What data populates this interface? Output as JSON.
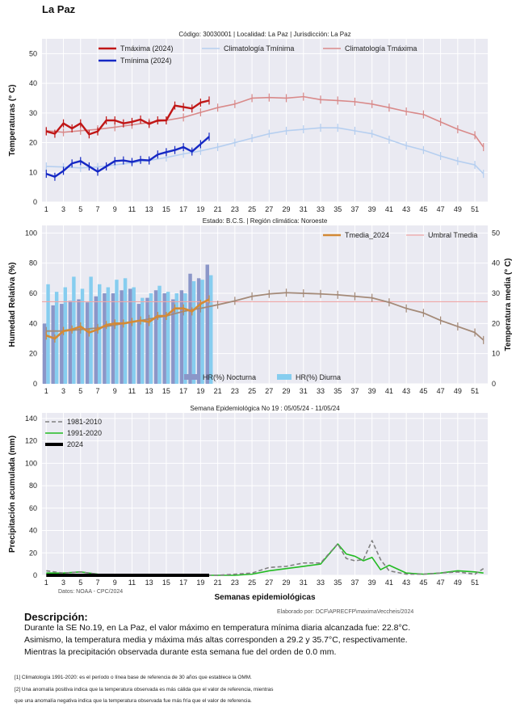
{
  "page": {
    "title": "La Paz",
    "credit_left": "Datos: NOAA - CPC/2024",
    "credit_right": "Elaborado por: DCF\\APRECFP\\maximaVeccheis/2024"
  },
  "description": {
    "heading": "Descripción:",
    "lines": [
      "Durante la SE No.19, en La Paz, el valor máximo en temperatura mínima diaria alcanzada fue: 22.8°C.",
      "Asimismo, la temperatura media y máxima más altas corresponden a 29.2 y 35.7°C, respectivamente.",
      "Mientras la precipitación observada durante esta semana fue del orden de  0.0 mm."
    ],
    "notes": [
      "[1] Climatología 1991-2020: es el período o línea base de referencia de 30 años que establece la OMM.",
      "[2] Una anomalía positiva indica que la temperatura observada es más cálida que el valor de referencia, mientras",
      "     que una anomalía negativa indica que la temperatura observada fue más fría que el valor de referencia."
    ]
  },
  "colors": {
    "tmax": "#c01616",
    "tmin": "#1528c4",
    "clim_tmax": "#d98a8a",
    "clim_tmin": "#b6cff0",
    "tmedia": "#d48a36",
    "umbral": "#f0a7a7",
    "hr_noct": "#8b96c8",
    "hr_diur": "#86cdef",
    "p1981": "#808080",
    "p1991": "#22bb22",
    "p2024": "#000000",
    "panel_bg": "#eaeaf2"
  },
  "chart_data": [
    {
      "type": "line",
      "title": "Código: 30030001  |   Localidad: La Paz  |   Jurisdicción: La Paz",
      "ylabel": "Temperaturas (° C)",
      "ylim": [
        0,
        55
      ],
      "yticks": [
        0,
        10,
        20,
        30,
        40,
        50
      ],
      "xlim": [
        0.5,
        52.5
      ],
      "xticks": [
        "1",
        "3",
        "5",
        "7",
        "9",
        "11",
        "13",
        "15",
        "17",
        "19",
        "21",
        "23",
        "25",
        "27",
        "29",
        "31",
        "33",
        "35",
        "37",
        "39",
        "41",
        "43",
        "45",
        "47",
        "49",
        "51"
      ],
      "grid": true,
      "legend": [
        "Tmáxima (2024)",
        "Tmínima (2024)",
        "Climatología Tmínima",
        "Climatología Tmáxima"
      ],
      "series": [
        {
          "name": "Tmáxima (2024)",
          "x": [
            1,
            2,
            3,
            4,
            5,
            6,
            7,
            8,
            9,
            10,
            11,
            12,
            13,
            14,
            15,
            16,
            17,
            18,
            19,
            20
          ],
          "values": [
            23.8,
            23.0,
            26.5,
            24.8,
            26.5,
            22.8,
            23.8,
            27.5,
            27.5,
            26.5,
            27.0,
            27.8,
            26.3,
            27.5,
            27.5,
            32.5,
            32.0,
            31.5,
            33.5,
            34.2
          ]
        },
        {
          "name": "Tmínima (2024)",
          "x": [
            1,
            2,
            3,
            4,
            5,
            6,
            7,
            8,
            9,
            10,
            11,
            12,
            13,
            14,
            15,
            16,
            17,
            18,
            19,
            20
          ],
          "values": [
            9.5,
            8.5,
            10.5,
            13.0,
            13.8,
            12.0,
            10.2,
            12.0,
            13.8,
            14.0,
            13.5,
            14.2,
            14.0,
            16.0,
            16.8,
            17.5,
            18.5,
            17.0,
            19.5,
            22.0
          ]
        },
        {
          "name": "Climatología Tmínima",
          "x": [
            1,
            3,
            5,
            7,
            9,
            11,
            13,
            15,
            17,
            19,
            21,
            23,
            25,
            27,
            29,
            31,
            33,
            35,
            37,
            39,
            41,
            43,
            45,
            47,
            49,
            51,
            52
          ],
          "values": [
            12.0,
            11.8,
            11.5,
            11.8,
            12.5,
            13.2,
            14.0,
            15.0,
            16.2,
            17.2,
            18.5,
            20.0,
            21.5,
            23.0,
            24.0,
            24.5,
            25.0,
            25.0,
            24.0,
            23.0,
            21.0,
            19.0,
            17.5,
            15.5,
            13.8,
            12.5,
            9.5
          ]
        },
        {
          "name": "Climatología Tmáxima",
          "x": [
            1,
            3,
            5,
            7,
            9,
            11,
            13,
            15,
            17,
            19,
            21,
            23,
            25,
            27,
            29,
            31,
            33,
            35,
            37,
            39,
            41,
            43,
            45,
            47,
            49,
            51,
            52
          ],
          "values": [
            24.0,
            23.5,
            24.0,
            24.5,
            25.2,
            26.0,
            26.8,
            27.5,
            28.5,
            30.2,
            31.8,
            33.0,
            35.0,
            35.2,
            35.0,
            35.5,
            34.5,
            34.2,
            33.8,
            33.0,
            31.8,
            30.5,
            29.5,
            27.0,
            24.5,
            22.5,
            18.5
          ]
        }
      ]
    },
    {
      "type": "bar",
      "title": "Estado: B.C.S.  |   Región climática: Noroeste",
      "ylabel": "Humedad Relativa (%)",
      "y2label": "Temperatura media (° C)",
      "ylim": [
        0,
        105
      ],
      "yticks": [
        0,
        20,
        40,
        60,
        80,
        100
      ],
      "y2lim": [
        0,
        52.5
      ],
      "y2ticks": [
        0,
        10,
        20,
        30,
        40,
        50
      ],
      "xlim": [
        0.5,
        52.5
      ],
      "grid": true,
      "legend": [
        "Tmedia_2024",
        "Umbral Tmedia",
        "HR(%) Nocturna",
        "HR(%) Diurna"
      ],
      "series": [
        {
          "name": "HR(%) Nocturna",
          "x": [
            1,
            2,
            3,
            4,
            5,
            6,
            7,
            8,
            9,
            10,
            11,
            12,
            13,
            14,
            15,
            16,
            17,
            18,
            19,
            20
          ],
          "values": [
            40,
            52,
            53,
            55,
            56,
            54,
            58,
            60,
            60,
            62,
            63,
            53,
            57,
            62,
            60,
            56,
            62,
            73,
            70,
            79
          ]
        },
        {
          "name": "HR(%) Diurna",
          "x": [
            1,
            2,
            3,
            4,
            5,
            6,
            7,
            8,
            9,
            10,
            11,
            12,
            13,
            14,
            15,
            16,
            17,
            18,
            19,
            20
          ],
          "values": [
            66,
            61,
            64,
            71,
            63,
            71,
            66,
            64,
            69,
            70,
            64,
            57,
            60,
            65,
            61,
            60,
            60,
            68,
            69,
            72
          ]
        },
        {
          "name": "Tmedia_2024",
          "x": [
            1,
            2,
            3,
            4,
            5,
            6,
            7,
            8,
            9,
            10,
            11,
            12,
            13,
            14,
            15,
            16,
            17,
            18,
            19,
            20
          ],
          "values": [
            16.0,
            15.0,
            17.5,
            18.0,
            19.0,
            17.0,
            18.0,
            19.5,
            20.0,
            20.0,
            20.5,
            21.0,
            20.5,
            22.5,
            22.5,
            25.0,
            25.0,
            24.0,
            26.5,
            28.0
          ]
        },
        {
          "name": "Tmedia climatología",
          "x": [
            1,
            3,
            5,
            7,
            9,
            11,
            13,
            15,
            17,
            19,
            21,
            23,
            25,
            27,
            29,
            31,
            33,
            35,
            37,
            39,
            41,
            43,
            45,
            47,
            49,
            51,
            52
          ],
          "values": [
            17.5,
            17.5,
            18.0,
            18.5,
            19.5,
            20.5,
            21.5,
            22.5,
            24.0,
            25.0,
            26.2,
            27.5,
            29.0,
            29.8,
            30.2,
            30.0,
            29.8,
            29.5,
            29.0,
            28.5,
            27.0,
            25.0,
            23.5,
            21.0,
            19.0,
            17.0,
            14.5
          ]
        },
        {
          "name": "Umbral Tmedia",
          "value": 27.2
        }
      ]
    },
    {
      "type": "line",
      "title": "Semana Epidemiológica No 19  :   05/05/24 - 11/05/24",
      "xlabel": "Semanas epidemiológicas",
      "ylabel": "Precipitación acumulada (mm)",
      "ylim": [
        0,
        145
      ],
      "yticks": [
        0,
        20,
        40,
        60,
        80,
        100,
        120,
        140
      ],
      "xlim": [
        0.5,
        52.5
      ],
      "grid": true,
      "legend": [
        "1981-2010",
        "1991-2020",
        "2024"
      ],
      "series": [
        {
          "name": "1981-2010",
          "x": [
            1,
            3,
            5,
            7,
            9,
            11,
            13,
            15,
            17,
            19,
            21,
            23,
            25,
            27,
            29,
            31,
            33,
            35,
            36,
            37,
            38,
            39,
            40,
            41,
            43,
            45,
            47,
            49,
            51,
            52
          ],
          "values": [
            4,
            2,
            3,
            1,
            0,
            0,
            0,
            0,
            0,
            0,
            0,
            1,
            2,
            7,
            8,
            11,
            11,
            28,
            15,
            13,
            14,
            31,
            14,
            4,
            1,
            1,
            2,
            3,
            1,
            6
          ]
        },
        {
          "name": "1991-2020",
          "x": [
            1,
            3,
            5,
            7,
            9,
            11,
            13,
            15,
            17,
            19,
            21,
            23,
            25,
            27,
            29,
            31,
            33,
            35,
            36,
            37,
            38,
            39,
            40,
            41,
            43,
            45,
            47,
            49,
            51,
            52
          ],
          "values": [
            2,
            2,
            3,
            1,
            0,
            0,
            0,
            0,
            0,
            0,
            0,
            0,
            1,
            4,
            6,
            8,
            10,
            28,
            19,
            17,
            13,
            16,
            5,
            9,
            2,
            1,
            2,
            4,
            3,
            2
          ]
        },
        {
          "name": "2024",
          "x": [
            1,
            3,
            5,
            7,
            9,
            11,
            13,
            15,
            17,
            19,
            20
          ],
          "values": [
            0,
            0,
            0,
            0,
            0,
            0,
            0,
            0,
            0,
            0,
            0
          ]
        }
      ]
    }
  ]
}
